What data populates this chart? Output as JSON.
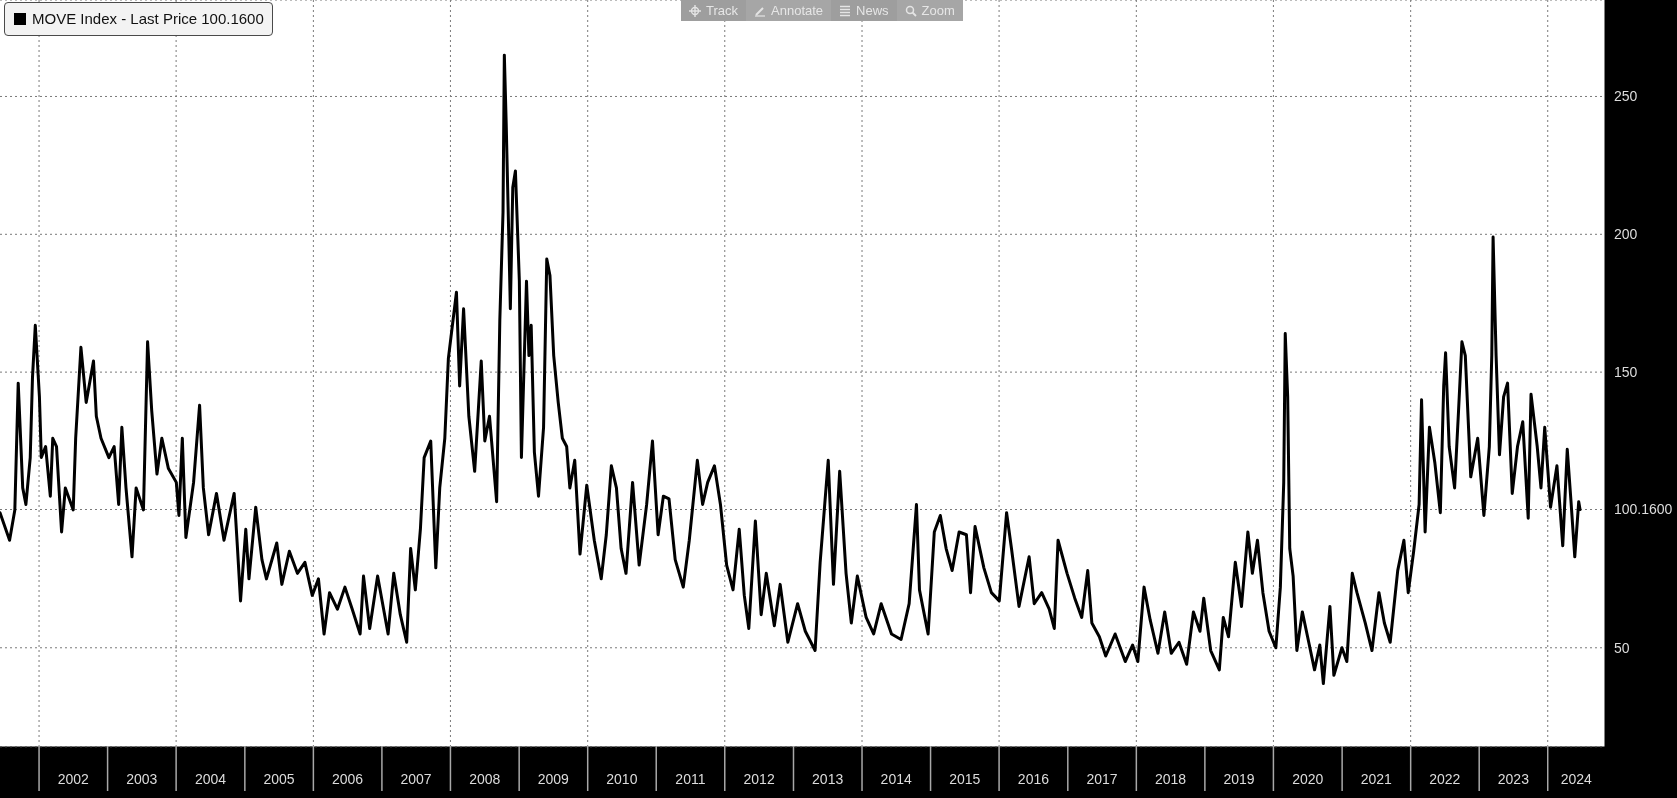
{
  "chart_data": {
    "type": "line",
    "x": [
      "2001-06-07",
      "2001-07-28",
      "2001-08-25",
      "2001-09-12",
      "2001-10-06",
      "2001-10-23",
      "2001-11-15",
      "2001-11-27",
      "2001-12-12",
      "2002-01-03",
      "2002-01-13",
      "2002-02-05",
      "2002-03-02",
      "2002-03-15",
      "2002-04-04",
      "2002-05-01",
      "2002-05-21",
      "2002-07-02",
      "2002-07-15",
      "2002-08-12",
      "2002-09-09",
      "2002-10-18",
      "2002-11-02",
      "2002-11-27",
      "2003-01-08",
      "2003-02-05",
      "2003-03-01",
      "2003-03-18",
      "2003-04-09",
      "2003-05-11",
      "2003-06-02",
      "2003-07-11",
      "2003-08-02",
      "2003-08-24",
      "2003-09-21",
      "2003-10-17",
      "2003-11-21",
      "2004-01-02",
      "2004-01-16",
      "2004-02-03",
      "2004-02-22",
      "2004-04-03",
      "2004-05-05",
      "2004-05-25",
      "2004-06-22",
      "2004-08-03",
      "2004-09-12",
      "2004-11-05",
      "2004-11-22",
      "2004-12-09",
      "2005-01-06",
      "2005-01-23",
      "2005-02-28",
      "2005-04-02",
      "2005-04-26",
      "2005-06-20",
      "2005-07-17",
      "2005-08-26",
      "2005-10-08",
      "2005-11-17",
      "2005-12-26",
      "2006-01-28",
      "2006-02-27",
      "2006-03-28",
      "2006-05-09",
      "2006-06-18",
      "2006-07-27",
      "2006-09-07",
      "2006-09-25",
      "2006-10-28",
      "2006-12-09",
      "2007-02-03",
      "2007-03-05",
      "2007-04-09",
      "2007-05-13",
      "2007-06-03",
      "2007-06-28",
      "2007-07-25",
      "2007-08-14",
      "2007-09-18",
      "2007-10-15",
      "2007-11-05",
      "2007-12-02",
      "2007-12-21",
      "2008-02-02",
      "2008-02-19",
      "2008-03-11",
      "2008-04-08",
      "2008-05-09",
      "2008-06-13",
      "2008-07-02",
      "2008-07-27",
      "2008-09-03",
      "2008-09-20",
      "2008-10-07",
      "2008-10-14",
      "2008-10-24",
      "2008-11-08",
      "2008-11-15",
      "2008-11-28",
      "2008-12-12",
      "2009-01-02",
      "2009-01-13",
      "2009-02-09",
      "2009-02-22",
      "2009-03-06",
      "2009-03-23",
      "2009-04-14",
      "2009-05-11",
      "2009-05-28",
      "2009-06-14",
      "2009-07-04",
      "2009-07-28",
      "2009-08-19",
      "2009-09-11",
      "2009-09-28",
      "2009-10-24",
      "2009-11-21",
      "2009-12-27",
      "2010-02-05",
      "2010-03-14",
      "2010-04-10",
      "2010-05-07",
      "2010-06-03",
      "2010-06-28",
      "2010-07-24",
      "2010-08-28",
      "2010-10-02",
      "2010-11-11",
      "2010-12-12",
      "2011-01-11",
      "2011-02-08",
      "2011-03-10",
      "2011-04-12",
      "2011-05-25",
      "2011-06-26",
      "2011-08-08",
      "2011-09-05",
      "2011-10-02",
      "2011-11-07",
      "2011-12-09",
      "2012-01-11",
      "2012-02-14",
      "2012-03-18",
      "2012-04-14",
      "2012-05-08",
      "2012-06-12",
      "2012-07-13",
      "2012-08-09",
      "2012-09-21",
      "2012-10-22",
      "2012-12-02",
      "2013-01-23",
      "2013-03-05",
      "2013-04-26",
      "2013-05-23",
      "2013-07-05",
      "2013-08-02",
      "2013-09-04",
      "2013-10-08",
      "2013-11-05",
      "2013-12-07",
      "2014-01-23",
      "2014-03-04",
      "2014-04-13",
      "2014-06-07",
      "2014-07-28",
      "2014-09-09",
      "2014-10-18",
      "2014-11-03",
      "2014-12-19",
      "2015-01-21",
      "2015-02-22",
      "2015-03-25",
      "2015-04-26",
      "2015-06-02",
      "2015-07-11",
      "2015-08-02",
      "2015-08-26",
      "2015-10-12",
      "2015-11-21",
      "2016-01-02",
      "2016-02-10",
      "2016-03-07",
      "2016-04-16",
      "2016-06-09",
      "2016-07-06",
      "2016-08-15",
      "2016-09-24",
      "2016-10-21",
      "2016-11-10",
      "2016-12-28",
      "2017-02-07",
      "2017-03-16",
      "2017-04-17",
      "2017-05-09",
      "2017-06-18",
      "2017-07-22",
      "2017-09-10",
      "2017-11-03",
      "2017-12-12",
      "2018-01-09",
      "2018-02-11",
      "2018-03-16",
      "2018-04-26",
      "2018-06-01",
      "2018-07-06",
      "2018-08-16",
      "2018-09-26",
      "2018-11-01",
      "2018-12-06",
      "2018-12-26",
      "2019-02-01",
      "2019-03-19",
      "2019-04-09",
      "2019-05-07",
      "2019-06-12",
      "2019-07-15",
      "2019-08-18",
      "2019-09-11",
      "2019-10-08",
      "2019-11-06",
      "2019-12-09",
      "2020-01-14",
      "2020-02-07",
      "2020-02-25",
      "2020-03-04",
      "2020-03-17",
      "2020-03-28",
      "2020-04-15",
      "2020-05-05",
      "2020-06-03",
      "2020-07-01",
      "2020-08-07",
      "2020-09-04",
      "2020-09-23",
      "2020-10-28",
      "2020-11-18",
      "2020-12-31",
      "2021-01-26",
      "2021-02-24",
      "2021-03-21",
      "2021-05-04",
      "2021-06-09",
      "2021-07-16",
      "2021-08-14",
      "2021-09-14",
      "2021-10-24",
      "2021-11-26",
      "2021-12-19",
      "2022-01-17",
      "2022-02-15",
      "2022-02-28",
      "2022-03-19",
      "2022-04-11",
      "2022-05-10",
      "2022-06-08",
      "2022-06-26",
      "2022-07-06",
      "2022-07-25",
      "2022-08-23",
      "2022-09-13",
      "2022-10-01",
      "2022-10-19",
      "2022-11-17",
      "2022-12-24",
      "2023-01-26",
      "2023-02-24",
      "2023-03-09",
      "2023-03-16",
      "2023-04-01",
      "2023-04-19",
      "2023-05-11",
      "2023-06-01",
      "2023-06-26",
      "2023-07-24",
      "2023-08-21",
      "2023-09-19",
      "2023-10-04",
      "2023-11-06",
      "2023-11-26",
      "2023-12-16",
      "2024-01-16",
      "2024-02-19",
      "2024-03-21",
      "2024-04-14",
      "2024-05-04",
      "2024-05-24",
      "2024-06-14",
      "2024-06-21"
    ],
    "series": [
      {
        "name": "MOVE Index - Last Price 100.1600",
        "color": "#000000",
        "values": [
          99,
          89,
          100,
          146,
          108,
          102,
          119,
          148,
          167,
          141,
          119,
          123,
          105,
          126,
          123,
          92,
          108,
          100,
          126,
          159,
          139,
          154,
          134,
          126,
          119,
          123,
          102,
          130,
          108,
          83,
          108,
          100,
          161,
          136,
          113,
          126,
          115,
          110,
          98,
          126,
          90,
          110,
          138,
          108,
          91,
          106,
          89,
          106,
          87,
          67,
          93,
          75,
          101,
          82,
          75,
          88,
          73,
          85,
          77,
          81,
          69,
          75,
          55,
          70,
          64,
          72,
          64,
          55,
          76,
          57,
          76,
          55,
          77,
          62,
          52,
          86,
          71,
          93,
          119,
          125,
          79,
          108,
          126,
          155,
          179,
          145,
          173,
          134,
          114,
          154,
          125,
          134,
          103,
          169,
          208,
          265,
          240,
          195,
          173,
          217,
          223,
          183,
          119,
          183,
          156,
          167,
          121,
          105,
          130,
          191,
          185,
          156,
          139,
          126,
          123,
          108,
          118,
          84,
          109,
          89,
          75,
          91,
          116,
          108,
          86,
          77,
          110,
          80,
          102,
          125,
          91,
          105,
          104,
          82,
          72,
          89,
          118,
          102,
          110,
          116,
          102,
          80,
          71,
          93,
          69,
          57,
          96,
          62,
          77,
          58,
          73,
          52,
          66,
          56,
          49,
          81,
          118,
          73,
          114,
          77,
          59,
          76,
          61,
          55,
          66,
          55,
          53,
          66,
          102,
          71,
          55,
          92,
          98,
          86,
          78,
          92,
          91,
          70,
          94,
          79,
          70,
          67,
          99,
          86,
          65,
          83,
          66,
          70,
          64,
          57,
          89,
          77,
          68,
          61,
          78,
          59,
          54,
          47,
          55,
          45,
          51,
          45,
          72,
          60,
          48,
          63,
          48,
          52,
          44,
          63,
          56,
          68,
          49,
          42,
          61,
          54,
          81,
          65,
          92,
          77,
          89,
          70,
          56,
          50,
          72,
          110,
          164,
          141,
          86,
          76,
          49,
          63,
          54,
          42,
          51,
          37,
          65,
          40,
          50,
          45,
          77,
          70,
          59,
          49,
          70,
          59,
          52,
          78,
          89,
          70,
          85,
          102,
          140,
          92,
          130,
          117,
          99,
          145,
          157,
          123,
          108,
          136,
          161,
          156,
          112,
          126,
          98,
          123,
          156,
          199,
          156,
          120,
          141,
          146,
          106,
          123,
          132,
          97,
          142,
          123,
          108,
          130,
          101,
          116,
          87,
          122,
          103,
          83,
          103,
          100.16
        ]
      }
    ],
    "xlim": [
      "2001-06-07",
      "2024-11-01"
    ],
    "xticks": [
      {
        "value": "2002-01-01",
        "label": null
      },
      {
        "value": "2002-07-02",
        "label": "2002"
      },
      {
        "value": "2003-01-01",
        "label": null
      },
      {
        "value": "2003-07-02",
        "label": "2003"
      },
      {
        "value": "2004-01-01",
        "label": null
      },
      {
        "value": "2004-07-02",
        "label": "2004"
      },
      {
        "value": "2005-01-01",
        "label": null
      },
      {
        "value": "2005-07-02",
        "label": "2005"
      },
      {
        "value": "2006-01-01",
        "label": null
      },
      {
        "value": "2006-07-02",
        "label": "2006"
      },
      {
        "value": "2007-01-01",
        "label": null
      },
      {
        "value": "2007-07-02",
        "label": "2007"
      },
      {
        "value": "2008-01-01",
        "label": null
      },
      {
        "value": "2008-07-02",
        "label": "2008"
      },
      {
        "value": "2009-01-01",
        "label": null
      },
      {
        "value": "2009-07-02",
        "label": "2009"
      },
      {
        "value": "2010-01-01",
        "label": null
      },
      {
        "value": "2010-07-02",
        "label": "2010"
      },
      {
        "value": "2011-01-01",
        "label": null
      },
      {
        "value": "2011-07-02",
        "label": "2011"
      },
      {
        "value": "2012-01-01",
        "label": null
      },
      {
        "value": "2012-07-02",
        "label": "2012"
      },
      {
        "value": "2013-01-01",
        "label": null
      },
      {
        "value": "2013-07-02",
        "label": "2013"
      },
      {
        "value": "2014-01-01",
        "label": null
      },
      {
        "value": "2014-07-02",
        "label": "2014"
      },
      {
        "value": "2015-01-01",
        "label": null
      },
      {
        "value": "2015-07-02",
        "label": "2015"
      },
      {
        "value": "2016-01-01",
        "label": null
      },
      {
        "value": "2016-07-02",
        "label": "2016"
      },
      {
        "value": "2017-01-01",
        "label": null
      },
      {
        "value": "2017-07-02",
        "label": "2017"
      },
      {
        "value": "2018-01-01",
        "label": null
      },
      {
        "value": "2018-07-02",
        "label": "2018"
      },
      {
        "value": "2019-01-01",
        "label": null
      },
      {
        "value": "2019-07-02",
        "label": "2019"
      },
      {
        "value": "2020-01-01",
        "label": null
      },
      {
        "value": "2020-07-02",
        "label": "2020"
      },
      {
        "value": "2021-01-01",
        "label": null
      },
      {
        "value": "2021-07-02",
        "label": "2021"
      },
      {
        "value": "2022-01-01",
        "label": null
      },
      {
        "value": "2022-07-02",
        "label": "2022"
      },
      {
        "value": "2023-01-01",
        "label": null
      },
      {
        "value": "2023-07-02",
        "label": "2023"
      },
      {
        "value": "2024-01-01",
        "label": null
      },
      {
        "value": "2024-06-01",
        "label": "2024"
      }
    ],
    "ylim": [
      14,
      285
    ],
    "yticks": [
      50,
      {
        "value": 100.16,
        "label": "100.1600"
      },
      150,
      200,
      250
    ],
    "grid": "y",
    "ref_lines": [
      {
        "axis": "x",
        "value": "2002-01-01",
        "color": "#7a7a7a",
        "line_style": "dotted"
      },
      {
        "axis": "x",
        "value": "2004-01-01",
        "color": "#7a7a7a",
        "line_style": "dotted"
      },
      {
        "axis": "x",
        "value": "2006-01-01",
        "color": "#7a7a7a",
        "line_style": "dotted"
      },
      {
        "axis": "x",
        "value": "2008-01-01",
        "color": "#7a7a7a",
        "line_style": "dotted"
      },
      {
        "axis": "x",
        "value": "2010-01-01",
        "color": "#7a7a7a",
        "line_style": "dotted"
      },
      {
        "axis": "x",
        "value": "2012-01-01",
        "color": "#7a7a7a",
        "line_style": "dotted"
      },
      {
        "axis": "x",
        "value": "2014-01-01",
        "color": "#7a7a7a",
        "line_style": "dotted"
      },
      {
        "axis": "x",
        "value": "2016-01-01",
        "color": "#7a7a7a",
        "line_style": "dotted"
      },
      {
        "axis": "x",
        "value": "2018-01-01",
        "color": "#7a7a7a",
        "line_style": "dotted"
      },
      {
        "axis": "x",
        "value": "2020-01-01",
        "color": "#7a7a7a",
        "line_style": "dotted"
      },
      {
        "axis": "x",
        "value": "2022-01-01",
        "color": "#7a7a7a",
        "line_style": "dotted"
      },
      {
        "axis": "x",
        "value": "2024-01-01",
        "color": "#7a7a7a",
        "line_style": "dotted"
      }
    ],
    "legend": "top left",
    "annotations": [
      "Track",
      "Annotate",
      "News",
      "Zoom"
    ]
  }
}
